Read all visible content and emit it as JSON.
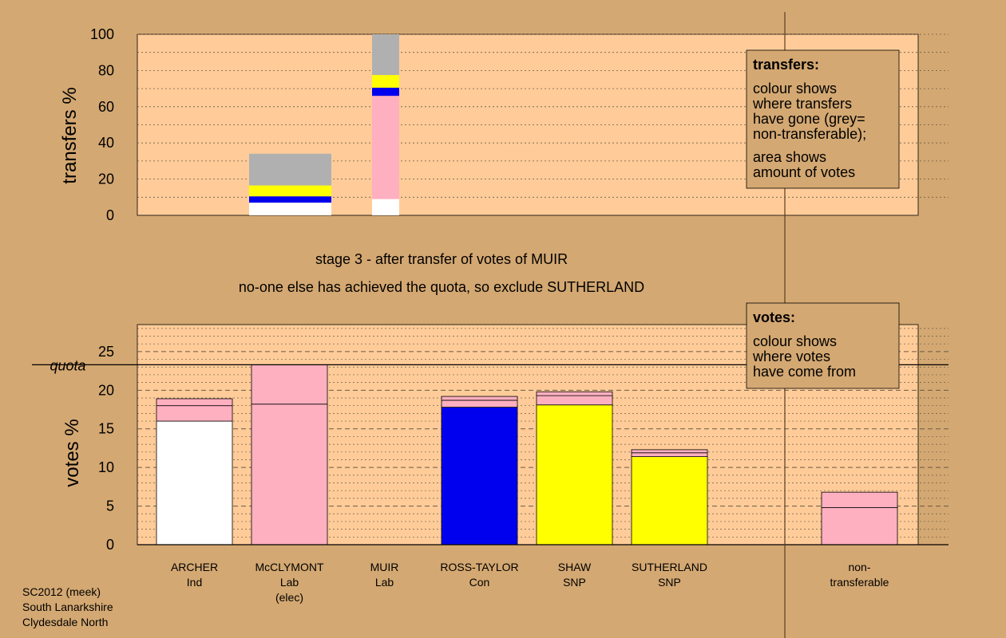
{
  "captions": {
    "stage": "stage 3 - after transfer of votes of MUIR",
    "decision": "no-one else has achieved the quota, so exclude SUTHERLAND"
  },
  "source": [
    "SC2012 (meek)",
    "South Lanarkshire",
    "Clydesdale North"
  ],
  "legend_transfers": {
    "title": "transfers:",
    "lines": [
      "colour shows",
      "where transfers",
      "have gone (grey=",
      "non-transferable);",
      "area shows",
      "amount of votes"
    ]
  },
  "legend_votes": {
    "title": "votes:",
    "lines": [
      "colour shows",
      "where votes",
      "have come from"
    ]
  },
  "colors": {
    "background": "#d4a872",
    "plot": "#ffcc99",
    "Ind": "#ffffff",
    "Lab": "#ffb0c0",
    "Con": "#0000ee",
    "SNP": "#ffff00",
    "nontransferable": "#b0b0b0"
  },
  "chart_data": [
    {
      "type": "bar",
      "name": "transfers",
      "ylabel": "transfers %",
      "ylim": [
        0,
        100
      ],
      "yticks": [
        0,
        20,
        40,
        60,
        80,
        100
      ],
      "bars": [
        {
          "slot": 1,
          "segments": [
            {
              "party": "Ind",
              "value": 7
            },
            {
              "party": "Con",
              "value": 3.5
            },
            {
              "party": "SNP",
              "value": 6
            },
            {
              "party": "nontransferable",
              "value": 17.5
            }
          ]
        },
        {
          "slot": 2.3,
          "segments": [
            {
              "party": "Ind",
              "value": 9
            },
            {
              "party": "Lab",
              "value": 57
            },
            {
              "party": "Con",
              "value": 4.5
            },
            {
              "party": "SNP",
              "value": 7
            },
            {
              "party": "nontransferable",
              "value": 22.5
            }
          ]
        }
      ]
    },
    {
      "type": "bar",
      "name": "votes",
      "ylabel": "votes %",
      "ylim": [
        0,
        28.5
      ],
      "yticks": [
        0,
        5,
        10,
        15,
        20,
        25
      ],
      "quota": {
        "label": "quota",
        "value": 23.3
      },
      "categories": [
        {
          "name": "ARCHER",
          "party": "Ind",
          "sub": []
        },
        {
          "name": "McCLYMONT",
          "party": "Lab",
          "sub": [
            "(elec)"
          ]
        },
        {
          "name": "MUIR",
          "party": "Lab",
          "sub": []
        },
        {
          "name": "ROSS-TAYLOR",
          "party": "Con",
          "sub": []
        },
        {
          "name": "SHAW",
          "party": "SNP",
          "sub": []
        },
        {
          "name": "SUTHERLAND",
          "party": "SNP",
          "sub": []
        }
      ],
      "nontransferable": {
        "name": "non-",
        "sub": "transferable"
      },
      "bars": [
        {
          "slot": 0,
          "segments": [
            {
              "party": "Ind",
              "value": 16.0
            },
            {
              "party": "Lab",
              "value": 2.0
            },
            {
              "party": "Lab",
              "value": 0.9
            }
          ]
        },
        {
          "slot": 1,
          "segments": [
            {
              "party": "Lab",
              "value": 18.2
            },
            {
              "party": "Lab",
              "value": 5.1
            }
          ]
        },
        {
          "slot": 3,
          "segments": [
            {
              "party": "Con",
              "value": 17.8
            },
            {
              "party": "Lab",
              "value": 0.9
            },
            {
              "party": "Lab",
              "value": 0.5
            }
          ]
        },
        {
          "slot": 4,
          "segments": [
            {
              "party": "SNP",
              "value": 18.1
            },
            {
              "party": "Lab",
              "value": 1.2
            },
            {
              "party": "Lab",
              "value": 0.5
            }
          ]
        },
        {
          "slot": 5,
          "segments": [
            {
              "party": "SNP",
              "value": 11.4
            },
            {
              "party": "Lab",
              "value": 0.5
            },
            {
              "party": "Lab",
              "value": 0.4
            }
          ]
        },
        {
          "slot": 7,
          "segments": [
            {
              "party": "Lab",
              "value": 4.8
            },
            {
              "party": "Lab",
              "value": 2.0
            }
          ]
        }
      ]
    }
  ]
}
